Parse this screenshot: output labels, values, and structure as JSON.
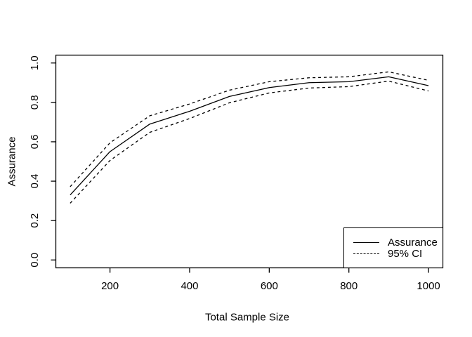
{
  "figure": {
    "background": "#ffffff",
    "foreground": "#000000"
  },
  "chart_data": {
    "type": "line",
    "title": "",
    "xlabel": "Total Sample Size",
    "ylabel": "Assurance",
    "x": [
      100,
      200,
      300,
      400,
      500,
      600,
      700,
      800,
      900,
      1000
    ],
    "series": [
      {
        "name": "Assurance",
        "style": "solid",
        "values": [
          0.33,
          0.55,
          0.69,
          0.755,
          0.83,
          0.875,
          0.9,
          0.905,
          0.93,
          0.885
        ]
      },
      {
        "name": "95% CI upper",
        "style": "dashed",
        "values": [
          0.372,
          0.595,
          0.732,
          0.792,
          0.862,
          0.905,
          0.925,
          0.93,
          0.955,
          0.912
        ]
      },
      {
        "name": "95% CI lower",
        "style": "dashed",
        "values": [
          0.288,
          0.505,
          0.648,
          0.718,
          0.798,
          0.848,
          0.873,
          0.88,
          0.908,
          0.858
        ]
      }
    ],
    "x_ticks": [
      200,
      400,
      600,
      800,
      1000
    ],
    "y_ticks": [
      0.0,
      0.2,
      0.4,
      0.6,
      0.8,
      1.0
    ],
    "xlim": [
      64,
      1036
    ],
    "ylim": [
      -0.04,
      1.04
    ],
    "grid": false,
    "legend_position": "bottomright",
    "legend": [
      {
        "label": "Assurance",
        "style": "solid"
      },
      {
        "label": "95% CI",
        "style": "dashed"
      }
    ],
    "colors": {
      "line": "#000000",
      "text": "#000000",
      "background": "#ffffff"
    }
  }
}
